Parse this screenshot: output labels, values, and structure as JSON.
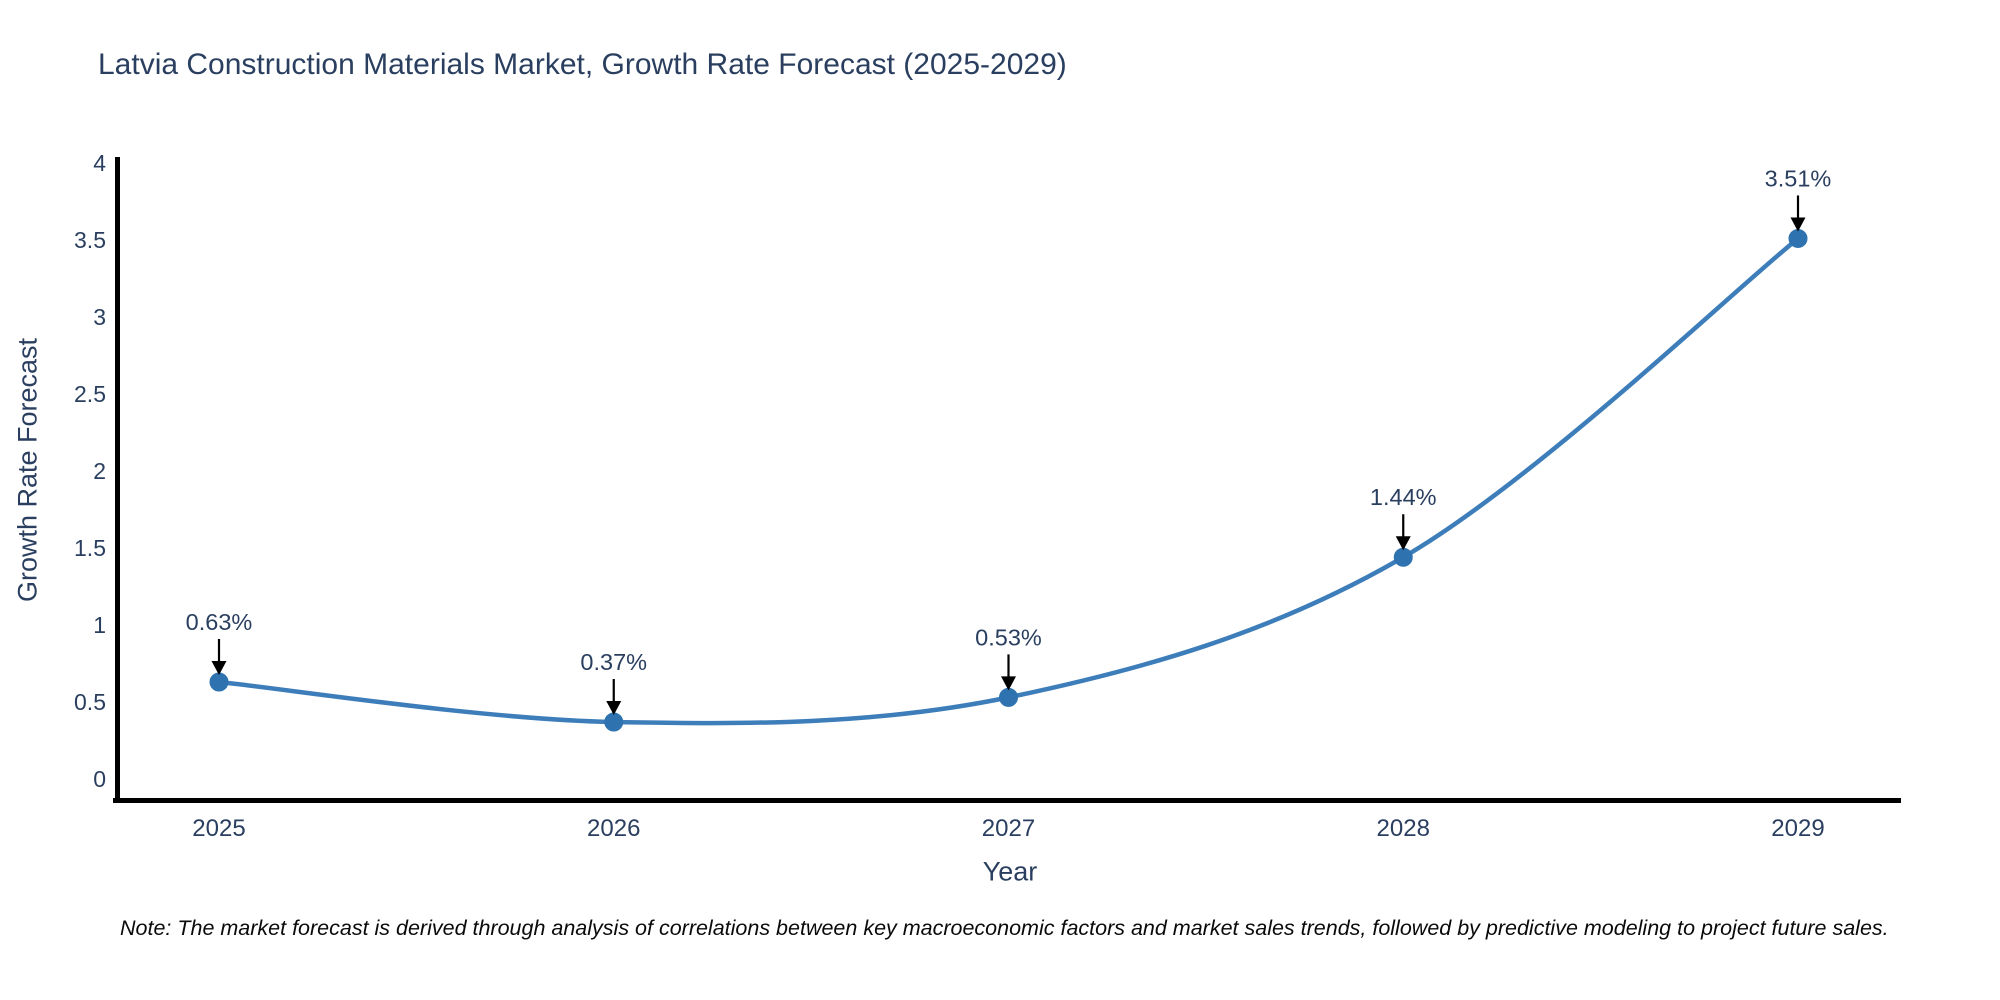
{
  "title": "Latvia Construction Materials Market, Growth Rate Forecast (2025-2029)",
  "note": "Note: The market forecast is derived through analysis of correlations between key macroeconomic factors and market sales trends, followed by predictive modeling to project future sales.",
  "chart_data": {
    "type": "line",
    "line_shape": "spline",
    "title": "Latvia Construction Materials Market, Growth Rate Forecast (2025-2029)",
    "xlabel": "Year",
    "ylabel": "Growth Rate Forecast",
    "categories": [
      "2025",
      "2026",
      "2027",
      "2028",
      "2029"
    ],
    "series": [
      {
        "name": "Growth Rate Forecast",
        "values": [
          0.63,
          0.37,
          0.53,
          1.44,
          3.51
        ]
      }
    ],
    "point_labels": [
      "0.63%",
      "0.37%",
      "0.53%",
      "1.44%",
      "3.51%"
    ],
    "ylim": [
      0,
      4
    ],
    "yticks": [
      0,
      0.5,
      1,
      1.5,
      2,
      2.5,
      3,
      3.5,
      4
    ],
    "ytick_labels": [
      "0",
      "0.5",
      "1",
      "1.5",
      "2",
      "2.5",
      "3",
      "3.5",
      "4"
    ],
    "grid": false,
    "legend_position": "none",
    "annotations_have_arrows": true,
    "colors": {
      "line": "#3d7eba",
      "marker": "#2e72af",
      "axis": "#000000",
      "tick_text": "#2a3f5f",
      "annotation_text": "#2a3f5f",
      "annotation_arrow": "#000000",
      "background": "#ffffff"
    }
  }
}
